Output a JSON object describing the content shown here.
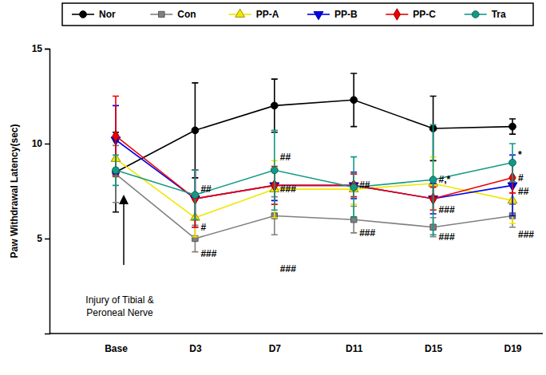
{
  "chart_data": {
    "type": "line",
    "y_label": "Paw Withdrawal Latency(sec)",
    "categories": [
      "Base",
      "D3",
      "D7",
      "D11",
      "D15",
      "D19"
    ],
    "ylim": [
      0,
      15
    ],
    "yticks": [
      5,
      10,
      15
    ],
    "legend": "top",
    "series": [
      {
        "name": "Nor",
        "color": "#000000",
        "marker": "circle",
        "values": [
          8.5,
          10.7,
          12.0,
          12.3,
          10.8,
          10.9
        ],
        "errors": [
          2.1,
          2.5,
          1.4,
          1.4,
          1.7,
          0.4
        ]
      },
      {
        "name": "Con",
        "color": "#808080",
        "marker": "square",
        "values": [
          8.4,
          5.0,
          6.2,
          6.0,
          5.6,
          6.2
        ],
        "errors": [
          1.5,
          0.7,
          1.0,
          0.7,
          0.5,
          0.6
        ]
      },
      {
        "name": "PP-A",
        "color": "#f2e600",
        "marker": "triangle",
        "values": [
          9.2,
          6.1,
          7.6,
          7.6,
          7.9,
          7.0
        ],
        "errors": [
          0.9,
          1.0,
          1.5,
          0.8,
          1.4,
          1.2
        ]
      },
      {
        "name": "PP-B",
        "color": "#0000ee",
        "marker": "triangle-down",
        "values": [
          10.2,
          7.1,
          7.8,
          7.8,
          7.1,
          7.8
        ],
        "errors": [
          1.8,
          1.5,
          0.8,
          0.7,
          0.8,
          1.6
        ]
      },
      {
        "name": "PP-C",
        "color": "#ee0000",
        "marker": "diamond",
        "values": [
          10.4,
          7.1,
          7.8,
          7.8,
          7.1,
          8.2
        ],
        "errors": [
          2.1,
          1.5,
          1.0,
          0.6,
          0.6,
          0.8
        ]
      },
      {
        "name": "Tra",
        "color": "#129a86",
        "marker": "circle",
        "values": [
          8.6,
          7.3,
          8.6,
          7.7,
          8.1,
          9.0
        ],
        "errors": [
          0.8,
          1.3,
          2.1,
          1.6,
          2.9,
          1.0
        ]
      }
    ],
    "annotations": [
      {
        "text": "##",
        "category": 1,
        "y": 7.6
      },
      {
        "text": "#",
        "category": 1,
        "y": 5.6
      },
      {
        "text": "###",
        "category": 1,
        "y": 4.2
      },
      {
        "text": "##",
        "category": 2,
        "y": 9.3
      },
      {
        "text": "###",
        "category": 2,
        "y": 7.6
      },
      {
        "text": "###",
        "category": 2,
        "y": 3.4
      },
      {
        "text": "##",
        "category": 3,
        "y": 7.8
      },
      {
        "text": "###",
        "category": 3,
        "y": 5.3
      },
      {
        "text": "#,*",
        "category": 4,
        "y": 8.1
      },
      {
        "text": "###",
        "category": 4,
        "y": 6.5
      },
      {
        "text": "###",
        "category": 4,
        "y": 5.1
      },
      {
        "text": "*",
        "category": 5,
        "y": 9.4
      },
      {
        "text": "#",
        "category": 5,
        "y": 8.2
      },
      {
        "text": "##",
        "category": 5,
        "y": 7.5
      },
      {
        "text": "###",
        "category": 5,
        "y": 5.2
      }
    ],
    "arrow_note": [
      "Injury of Tibial &",
      "Peroneal Nerve"
    ]
  }
}
